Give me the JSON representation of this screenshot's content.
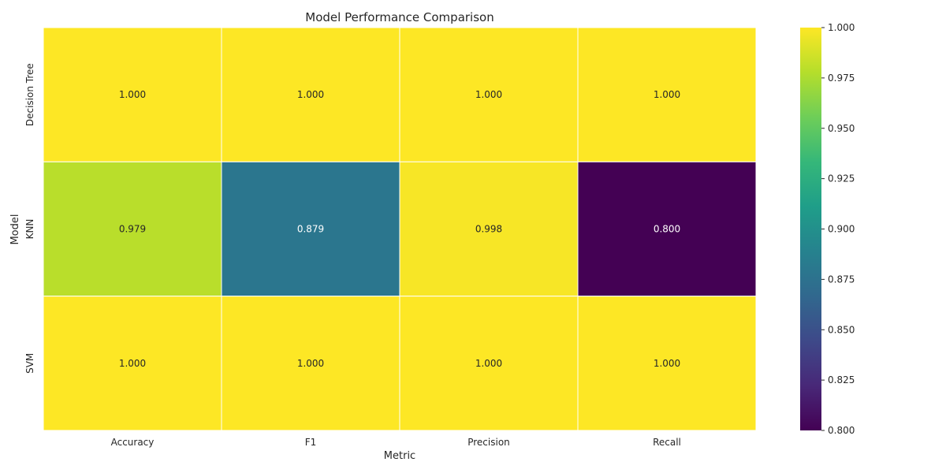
{
  "chart_data": {
    "type": "heatmap",
    "title": "Model Performance Comparison",
    "xlabel": "Metric",
    "ylabel": "Model",
    "x_categories": [
      "Accuracy",
      "F1",
      "Precision",
      "Recall"
    ],
    "y_categories": [
      "Decision Tree",
      "KNN",
      "SVM"
    ],
    "values": [
      [
        1.0,
        1.0,
        1.0,
        1.0
      ],
      [
        0.979,
        0.879,
        0.998,
        0.8
      ],
      [
        1.0,
        1.0,
        1.0,
        1.0
      ]
    ],
    "annotations": [
      [
        "1.000",
        "1.000",
        "1.000",
        "1.000"
      ],
      [
        "0.979",
        "0.879",
        "0.998",
        "0.800"
      ],
      [
        "1.000",
        "1.000",
        "1.000",
        "1.000"
      ]
    ],
    "colorbar": {
      "min": 0.8,
      "max": 1.0,
      "ticks": [
        "0.800",
        "0.825",
        "0.850",
        "0.875",
        "0.900",
        "0.925",
        "0.950",
        "0.975",
        "1.000"
      ]
    },
    "colormap": "viridis",
    "grid": false
  },
  "colors": {
    "cell_border": "#ffffff",
    "text_dark": "#262626",
    "text_light": "#ffffff",
    "viridis_stops": [
      "#440154",
      "#482878",
      "#3e4989",
      "#31688e",
      "#26828e",
      "#1f9e89",
      "#35b779",
      "#6ece58",
      "#b5de2b",
      "#fde725"
    ]
  }
}
